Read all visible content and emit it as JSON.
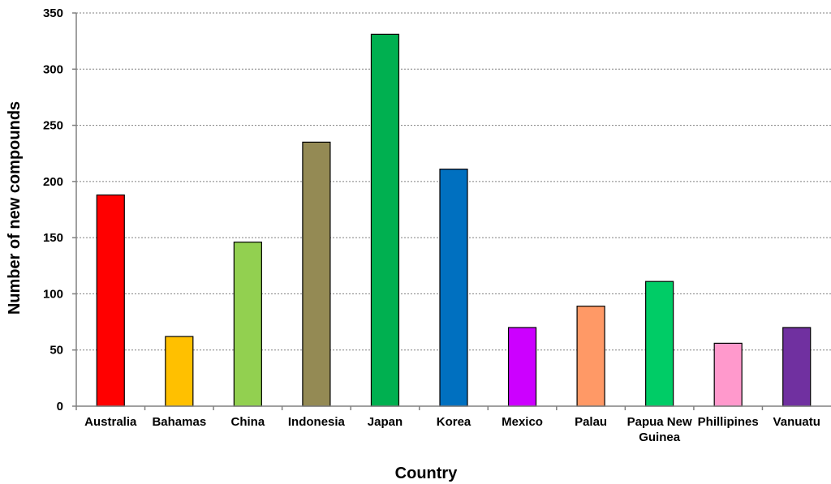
{
  "chart_data": {
    "type": "bar",
    "xlabel": "Country",
    "ylabel": "Number of new compounds",
    "ylim": [
      0,
      350
    ],
    "yticks": [
      0,
      50,
      100,
      150,
      200,
      250,
      300,
      350
    ],
    "grid": true,
    "categories": [
      "Australia",
      "Bahamas",
      "China",
      "Indonesia",
      "Japan",
      "Korea",
      "Mexico",
      "Palau",
      "Papua New Guinea",
      "Phillipines",
      "Vanuatu"
    ],
    "category_lines": [
      [
        "Australia"
      ],
      [
        "Bahamas"
      ],
      [
        "China"
      ],
      [
        "Indonesia"
      ],
      [
        "Japan"
      ],
      [
        "Korea"
      ],
      [
        "Mexico"
      ],
      [
        "Palau"
      ],
      [
        "Papua New",
        "Guinea"
      ],
      [
        "Phillipines"
      ],
      [
        "Vanuatu"
      ]
    ],
    "values": [
      188,
      62,
      146,
      235,
      331,
      211,
      70,
      89,
      111,
      56,
      70
    ],
    "colors": [
      "#ff0000",
      "#ffc000",
      "#92d050",
      "#948a54",
      "#00b050",
      "#0070c0",
      "#cc00ff",
      "#ff9966",
      "#00cc66",
      "#ff99cc",
      "#7030a0"
    ]
  }
}
